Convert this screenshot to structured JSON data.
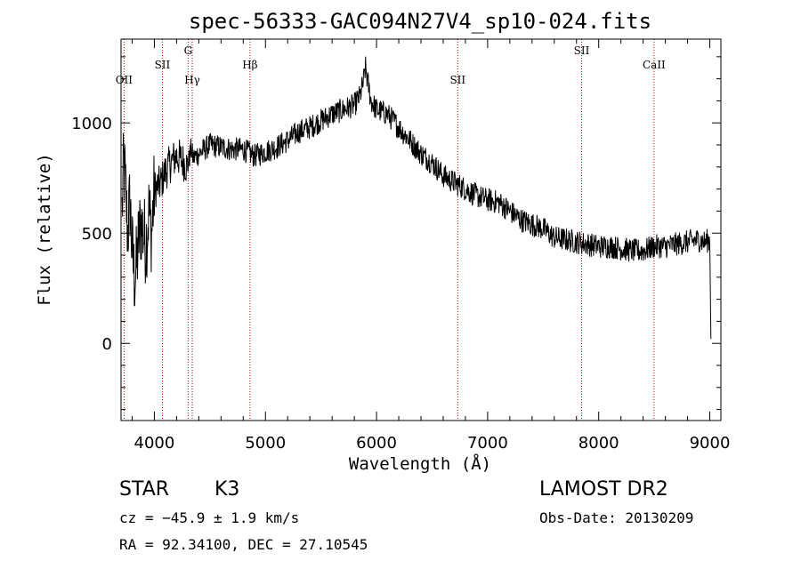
{
  "chart_data": {
    "type": "line",
    "title": "spec-56333-GAC094N27V4_sp10-024.fits",
    "xlabel": "Wavelength (Å)",
    "ylabel": "Flux (relative)",
    "xlim": [
      3700,
      9100
    ],
    "ylim": [
      -350,
      1380
    ],
    "xticks": [
      4000,
      5000,
      6000,
      7000,
      8000,
      9000
    ],
    "xtick_labels": [
      "4000",
      "5000",
      "6000",
      "7000",
      "8000",
      "9000"
    ],
    "yticks": [
      0,
      500,
      1000
    ],
    "ytick_labels": [
      "0",
      "500",
      "1000"
    ],
    "grid": false,
    "line_color": "#000000",
    "marker_color": "#cc0000",
    "spectral_lines": [
      {
        "label": "OII",
        "x": 3727,
        "row": "low"
      },
      {
        "label": "SII",
        "x": 4072,
        "row": "mid"
      },
      {
        "label": "G",
        "x": 4304,
        "row": "high"
      },
      {
        "label": "Hγ",
        "x": 4341,
        "row": "low"
      },
      {
        "label": "Hβ",
        "x": 4861,
        "row": "mid"
      },
      {
        "label": "SII",
        "x": 6731,
        "row": "low"
      },
      {
        "label": "SII",
        "x": 7846,
        "row": "high"
      },
      {
        "label": "CaII",
        "x": 8498,
        "row": "mid"
      }
    ],
    "series": [
      {
        "x": [
          3710,
          3725,
          3740,
          3760,
          3780,
          3800,
          3820,
          3840,
          3860,
          3880,
          3900,
          3925,
          3950,
          3975,
          4000,
          4050,
          4100,
          4150,
          4200,
          4250,
          4300,
          4330,
          4350,
          4400,
          4500,
          4600,
          4700,
          4800,
          4900,
          5000,
          5100,
          5200,
          5300,
          5400,
          5500,
          5600,
          5700,
          5800,
          5850,
          5880,
          5900,
          5950,
          6000,
          6100,
          6200,
          6300,
          6400,
          6500,
          6600,
          6700,
          6800,
          6900,
          7000,
          7100,
          7200,
          7300,
          7400,
          7500,
          7600,
          7700,
          7800,
          7900,
          8000,
          8100,
          8200,
          8300,
          8400,
          8500,
          8600,
          8700,
          8800,
          8900,
          8950,
          9000,
          9010
        ],
        "y": [
          600,
          820,
          700,
          500,
          650,
          420,
          300,
          350,
          480,
          550,
          500,
          450,
          600,
          500,
          700,
          720,
          780,
          820,
          850,
          830,
          800,
          880,
          840,
          860,
          900,
          890,
          880,
          880,
          850,
          870,
          890,
          920,
          960,
          980,
          1010,
          1040,
          1060,
          1080,
          1120,
          1180,
          1250,
          1100,
          1060,
          1040,
          980,
          920,
          860,
          820,
          760,
          730,
          700,
          670,
          650,
          640,
          600,
          560,
          540,
          520,
          480,
          470,
          460,
          450,
          440,
          440,
          430,
          420,
          420,
          440,
          440,
          450,
          460,
          470,
          460,
          470,
          20
        ]
      }
    ]
  },
  "info": {
    "class": "STAR",
    "subclass": "K3",
    "source": "LAMOST DR2",
    "cz": "cz = −45.9 ± 1.9 km/s",
    "obs_date": "Obs-Date: 20130209",
    "radec": "RA =  92.34100, DEC =  27.10545"
  }
}
